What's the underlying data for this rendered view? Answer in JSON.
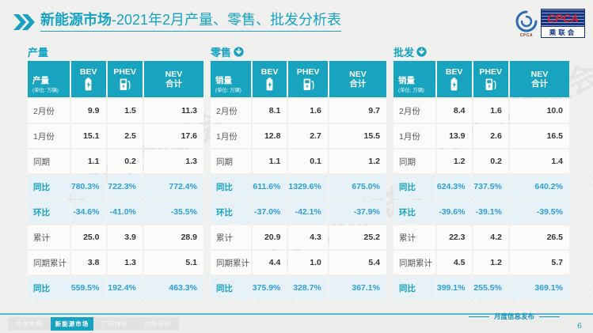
{
  "header": {
    "title_main": "新能源市场",
    "title_rest": "-2021年2月产量、零售、批发分析表"
  },
  "logo": {
    "acronym": "CPCA",
    "cn_name": "乘联会",
    "sub_text": "CPCA"
  },
  "watermark": "CPCA乘联会",
  "colors": {
    "accent_teal": "#18a3bf",
    "highlight_bg": "#e6f2f8",
    "highlight_value": "#2f9fd6",
    "logo_navy": "#16327e",
    "logo_red": "#d6252b"
  },
  "tables": [
    {
      "section_title": "产量",
      "arrow": false,
      "header": {
        "label": "产量",
        "unit": "(单位: 万辆)",
        "bev": "BEV",
        "phev": "PHEV",
        "total_line1": "NEV",
        "total_line2": "合计"
      },
      "rows": [
        {
          "label": "2月份",
          "values": [
            "9.9",
            "1.5",
            "11.3"
          ],
          "highlight": false
        },
        {
          "label": "1月份",
          "values": [
            "15.1",
            "2.5",
            "17.6"
          ],
          "highlight": false
        },
        {
          "label": "同期",
          "values": [
            "1.1",
            "0.2",
            "1.3"
          ],
          "highlight": false
        },
        {
          "label": "同比",
          "values": [
            "780.3%",
            "722.3%",
            "772.4%"
          ],
          "highlight": true
        },
        {
          "label": "环比",
          "values": [
            "-34.6%",
            "-41.0%",
            "-35.5%"
          ],
          "highlight": true
        },
        {
          "label": "累计",
          "values": [
            "25.0",
            "3.9",
            "28.9"
          ],
          "highlight": false
        },
        {
          "label": "同期累计",
          "values": [
            "3.8",
            "1.3",
            "5.1"
          ],
          "highlight": false
        },
        {
          "label": "同比",
          "values": [
            "559.5%",
            "192.4%",
            "463.3%"
          ],
          "highlight": true
        }
      ]
    },
    {
      "section_title": "零售",
      "arrow": true,
      "header": {
        "label": "销量",
        "unit": "(单位: 万辆)",
        "bev": "BEV",
        "phev": "PHEV",
        "total_line1": "NEV",
        "total_line2": "合计"
      },
      "rows": [
        {
          "label": "2月份",
          "values": [
            "8.1",
            "1.6",
            "9.7"
          ],
          "highlight": false
        },
        {
          "label": "1月份",
          "values": [
            "12.8",
            "2.7",
            "15.5"
          ],
          "highlight": false
        },
        {
          "label": "同期",
          "values": [
            "1.1",
            "0.1",
            "1.2"
          ],
          "highlight": false
        },
        {
          "label": "同比",
          "values": [
            "611.6%",
            "1329.6%",
            "675.0%"
          ],
          "highlight": true
        },
        {
          "label": "环比",
          "values": [
            "-37.0%",
            "-42.1%",
            "-37.9%"
          ],
          "highlight": true
        },
        {
          "label": "累计",
          "values": [
            "20.9",
            "4.3",
            "25.2"
          ],
          "highlight": false
        },
        {
          "label": "同期累计",
          "values": [
            "4.4",
            "1.0",
            "5.4"
          ],
          "highlight": false
        },
        {
          "label": "同比",
          "values": [
            "375.9%",
            "328.7%",
            "367.1%"
          ],
          "highlight": true
        }
      ]
    },
    {
      "section_title": "批发",
      "arrow": true,
      "header": {
        "label": "销量",
        "unit": "(单位: 万辆)",
        "bev": "BEV",
        "phev": "PHEV",
        "total_line1": "NEV",
        "total_line2": "合计"
      },
      "rows": [
        {
          "label": "2月份",
          "values": [
            "8.4",
            "1.6",
            "10.0"
          ],
          "highlight": false
        },
        {
          "label": "1月份",
          "values": [
            "13.9",
            "2.6",
            "16.5"
          ],
          "highlight": false
        },
        {
          "label": "同期",
          "values": [
            "1.2",
            "0.2",
            "1.4"
          ],
          "highlight": false
        },
        {
          "label": "同比",
          "values": [
            "624.3%",
            "737.5%",
            "640.2%"
          ],
          "highlight": true
        },
        {
          "label": "环比",
          "values": [
            "-39.6%",
            "-39.1%",
            "-39.5%"
          ],
          "highlight": true
        },
        {
          "label": "累计",
          "values": [
            "22.3",
            "4.2",
            "26.5"
          ],
          "highlight": false
        },
        {
          "label": "同期累计",
          "values": [
            "4.5",
            "1.2",
            "5.7"
          ],
          "highlight": false
        },
        {
          "label": "同比",
          "values": [
            "399.1%",
            "255.5%",
            "369.1%"
          ],
          "highlight": true
        }
      ]
    }
  ],
  "footer": {
    "tabs": [
      {
        "label": "总体市场",
        "active": false
      },
      {
        "label": "新能源市场",
        "active": true
      },
      {
        "label": "厂商排名",
        "active": false
      },
      {
        "label": "市场分析",
        "active": false
      }
    ],
    "publication": "月度信息发布",
    "page_number": "6"
  }
}
